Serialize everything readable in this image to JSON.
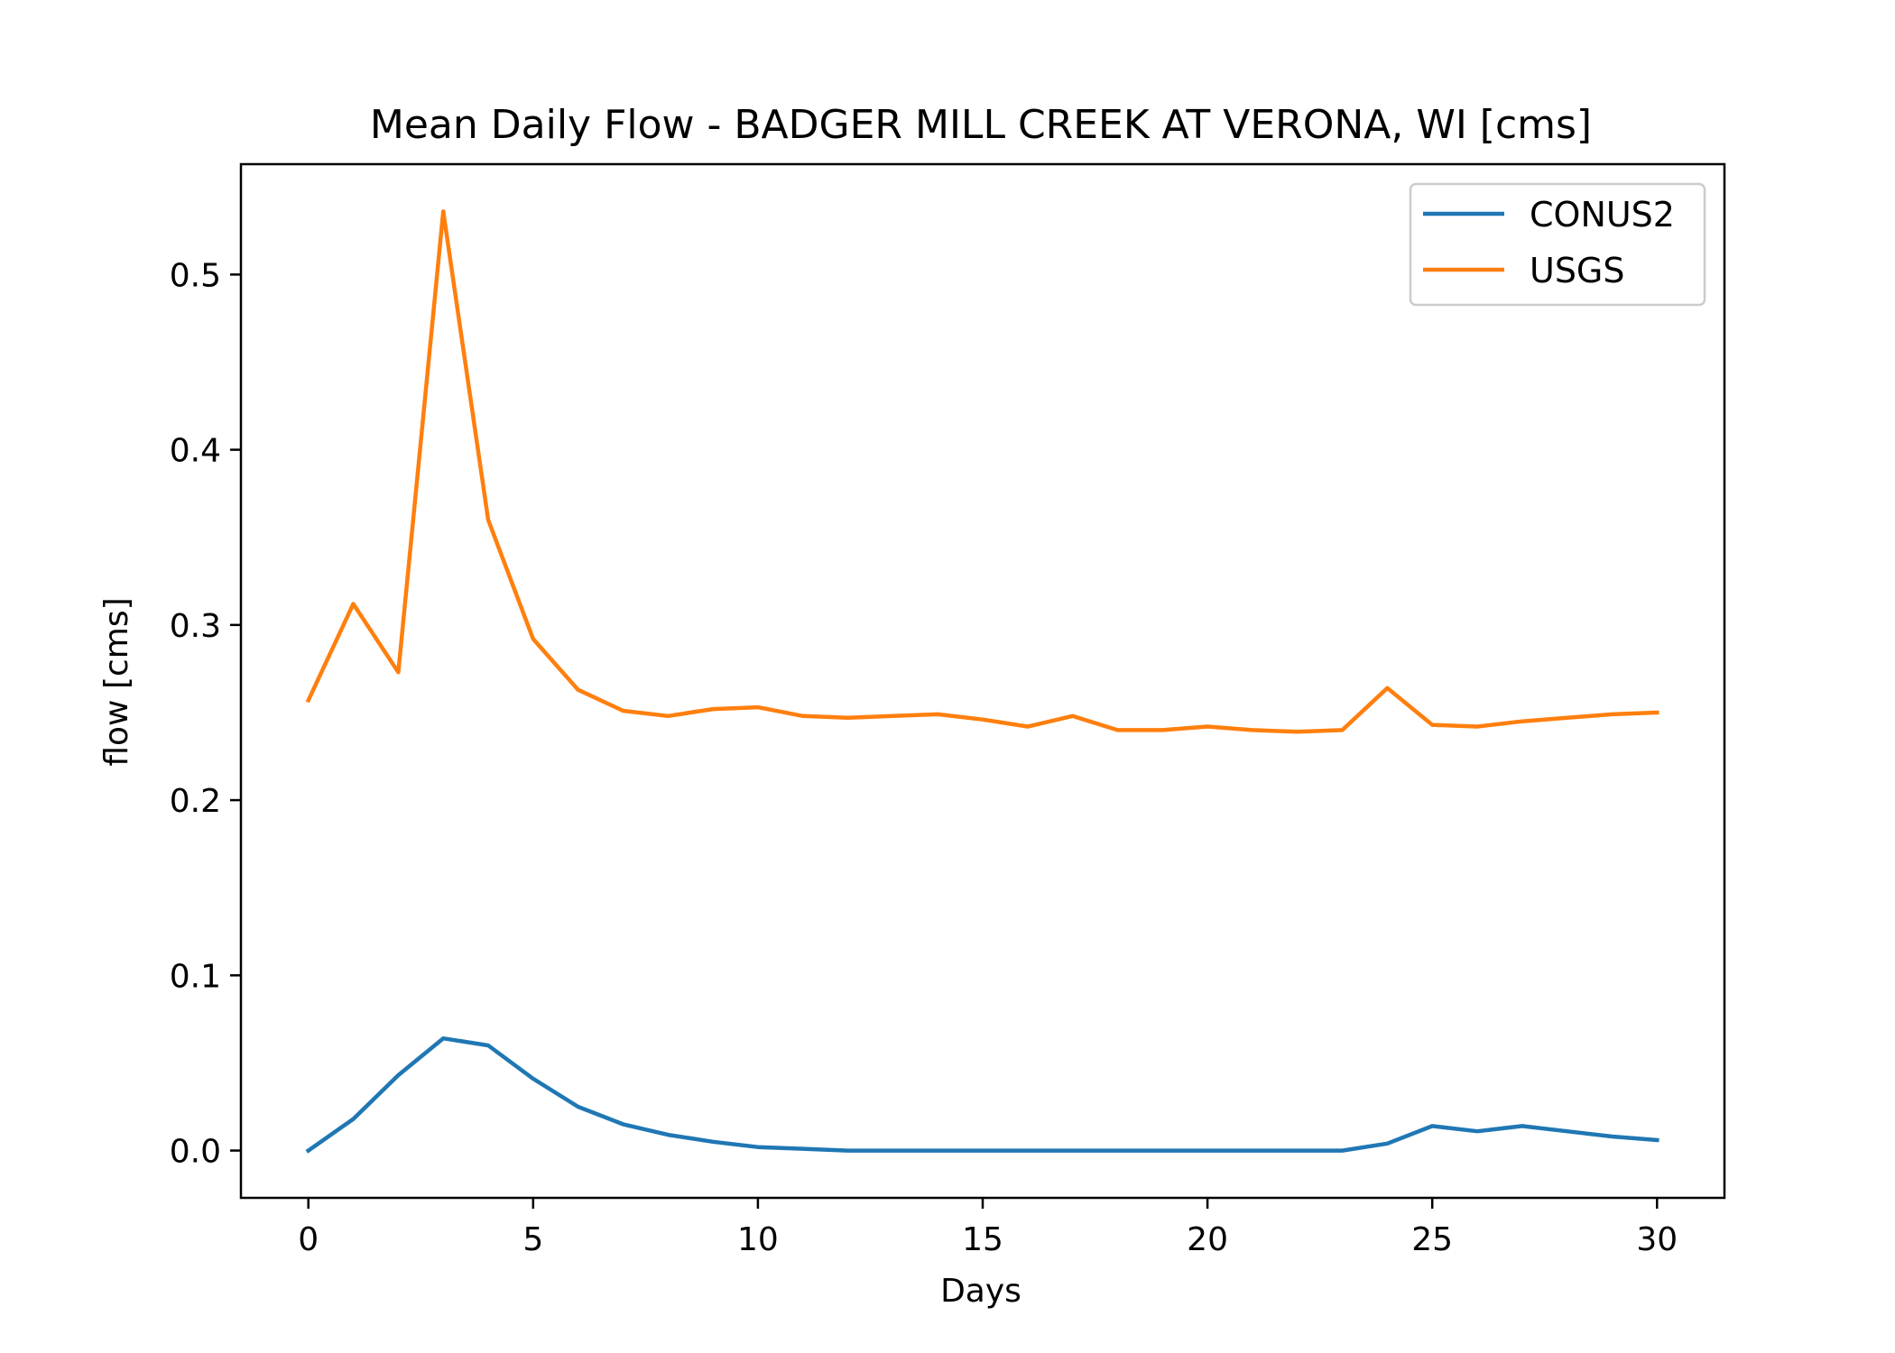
{
  "chart_data": {
    "type": "line",
    "title": "Mean Daily Flow - BADGER MILL CREEK AT VERONA, WI [cms]",
    "xlabel": "Days",
    "ylabel": "flow [cms]",
    "xlim": [
      -1.5,
      31.5
    ],
    "ylim": [
      -0.027,
      0.563
    ],
    "xticks": [
      0,
      5,
      10,
      15,
      20,
      25,
      30
    ],
    "yticks": [
      0.0,
      0.1,
      0.2,
      0.3,
      0.4,
      0.5
    ],
    "ytick_labels": [
      "0.0",
      "0.1",
      "0.2",
      "0.3",
      "0.4",
      "0.5"
    ],
    "legend_position": "top-right",
    "grid": false,
    "x": [
      0,
      1,
      2,
      3,
      4,
      5,
      6,
      7,
      8,
      9,
      10,
      11,
      12,
      13,
      14,
      15,
      16,
      17,
      18,
      19,
      20,
      21,
      22,
      23,
      24,
      25,
      26,
      27,
      28,
      29,
      30
    ],
    "series": [
      {
        "name": "CONUS2",
        "color": "#1f77b4",
        "values": [
          0.0,
          0.018,
          0.043,
          0.064,
          0.06,
          0.041,
          0.025,
          0.015,
          0.009,
          0.005,
          0.002,
          0.001,
          0.0,
          0.0,
          0.0,
          0.0,
          0.0,
          0.0,
          0.0,
          0.0,
          0.0,
          0.0,
          0.0,
          0.0,
          0.004,
          0.014,
          0.011,
          0.014,
          0.011,
          0.008,
          0.006
        ]
      },
      {
        "name": "USGS",
        "color": "#ff7f0e",
        "values": [
          0.257,
          0.312,
          0.273,
          0.536,
          0.36,
          0.292,
          0.263,
          0.251,
          0.248,
          0.252,
          0.253,
          0.248,
          0.247,
          0.248,
          0.249,
          0.246,
          0.242,
          0.248,
          0.24,
          0.24,
          0.242,
          0.24,
          0.239,
          0.24,
          0.264,
          0.243,
          0.242,
          0.245,
          0.247,
          0.249,
          0.25
        ]
      }
    ]
  }
}
